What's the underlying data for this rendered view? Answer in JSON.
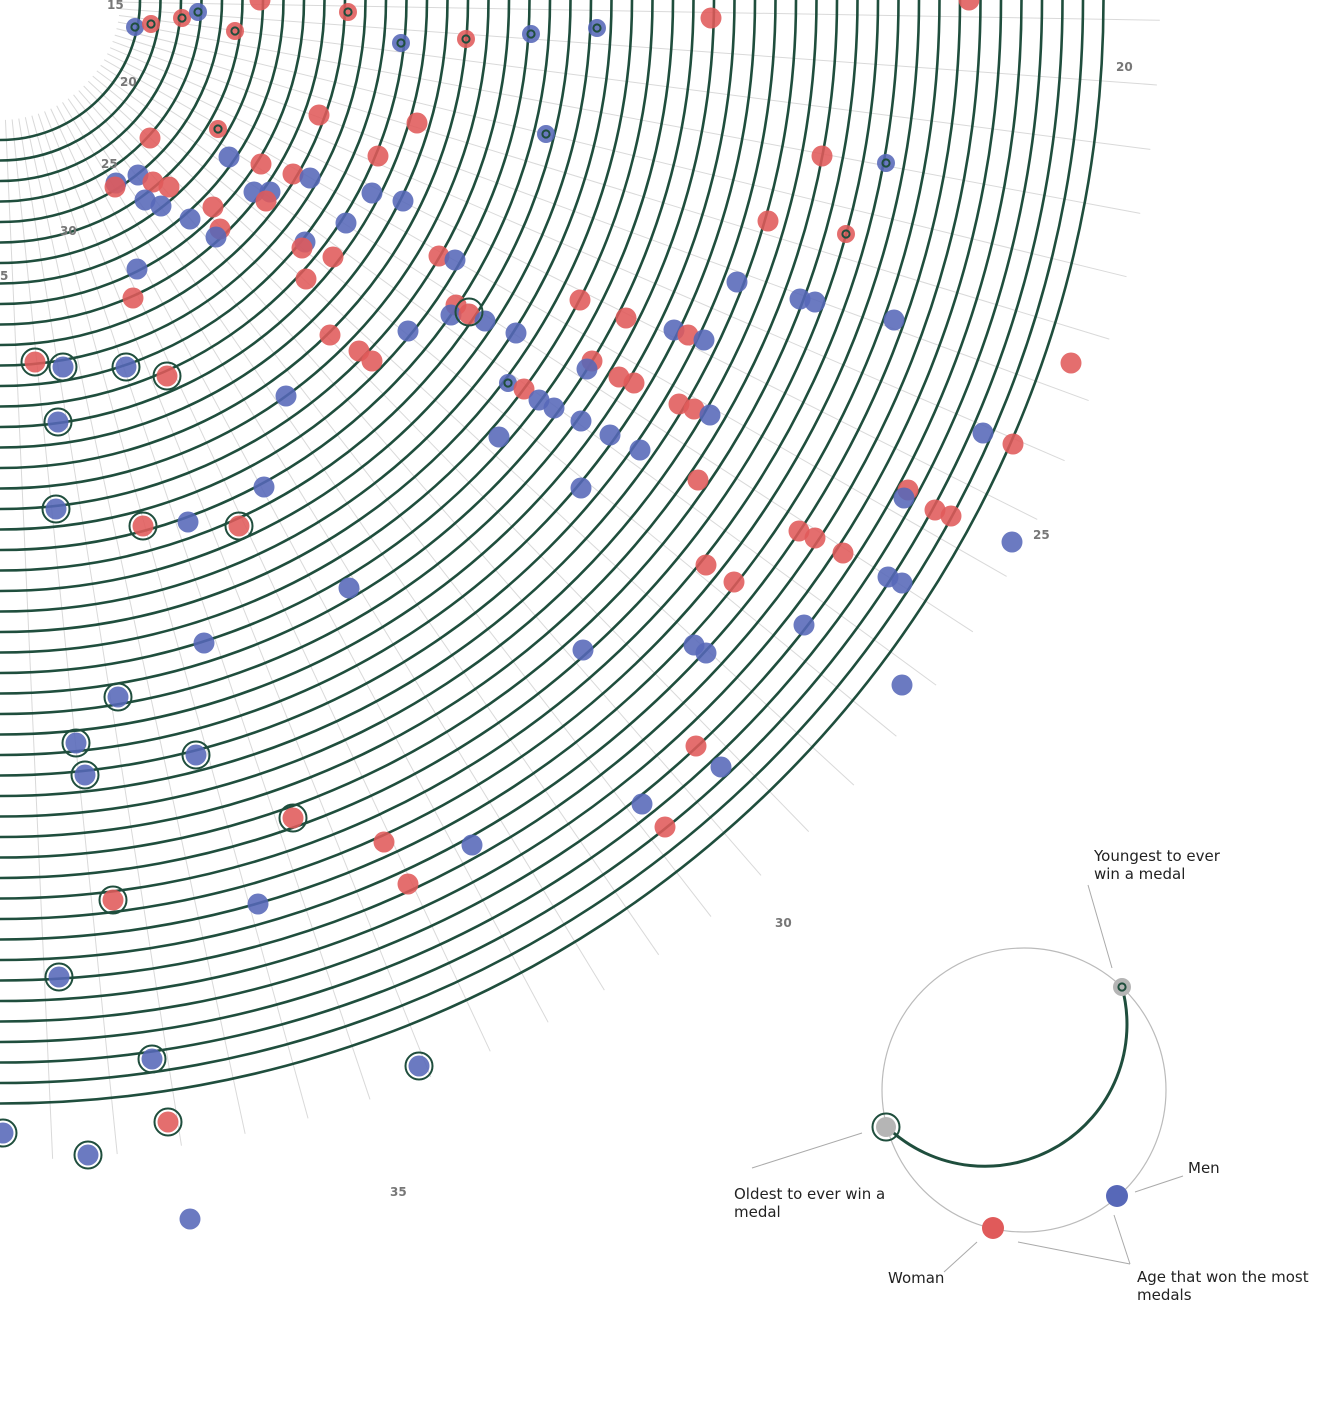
{
  "chart_data": {
    "type": "scatter",
    "title": "",
    "subtitle": "",
    "radial_axis": {
      "ticks": [
        {
          "label": "15"
        },
        {
          "label": "20"
        },
        {
          "label": "25"
        },
        {
          "label": "30"
        },
        {
          "label": "5"
        },
        {
          "label": "20"
        },
        {
          "label": "25"
        },
        {
          "label": "30"
        },
        {
          "label": "35"
        }
      ]
    },
    "colors": {
      "ring": "#1f4e3d",
      "gridline": "#d9d9d9",
      "men": "#5768b8",
      "woman": "#e05a5a",
      "neutral": "#b5b5b5"
    },
    "series": [
      {
        "name": "Men",
        "marker": "blue"
      },
      {
        "name": "Woman",
        "marker": "red"
      }
    ],
    "points": [
      {
        "cx": 135,
        "cy": 27,
        "c": "b",
        "m": "dot"
      },
      {
        "cx": 151,
        "cy": 24,
        "c": "r",
        "m": "dot"
      },
      {
        "cx": 182,
        "cy": 18,
        "c": "r",
        "m": "dot"
      },
      {
        "cx": 198,
        "cy": 12,
        "c": "b",
        "m": "dot"
      },
      {
        "cx": 235,
        "cy": 31,
        "c": "r",
        "m": "dot"
      },
      {
        "cx": 348,
        "cy": 12,
        "c": "r",
        "m": "dot"
      },
      {
        "cx": 401,
        "cy": 43,
        "c": "b",
        "m": "dot"
      },
      {
        "cx": 466,
        "cy": 39,
        "c": "r",
        "m": "dot"
      },
      {
        "cx": 531,
        "cy": 34,
        "c": "b",
        "m": "dot"
      },
      {
        "cx": 597,
        "cy": 28,
        "c": "b",
        "m": "dot"
      },
      {
        "cx": 218,
        "cy": 129,
        "c": "r",
        "m": "dot"
      },
      {
        "cx": 546,
        "cy": 134,
        "c": "b",
        "m": "dot"
      },
      {
        "cx": 886,
        "cy": 163,
        "c": "b",
        "m": "dot"
      },
      {
        "cx": 846,
        "cy": 234,
        "c": "r",
        "m": "dot"
      },
      {
        "cx": 508,
        "cy": 383,
        "c": "b",
        "m": "dot"
      },
      {
        "cx": 969,
        "cy": 0,
        "c": "r"
      },
      {
        "cx": 260,
        "cy": 0,
        "c": "r"
      },
      {
        "cx": 711,
        "cy": 18,
        "c": "r"
      },
      {
        "cx": 150,
        "cy": 138,
        "c": "r"
      },
      {
        "cx": 319,
        "cy": 115,
        "c": "r"
      },
      {
        "cx": 417,
        "cy": 123,
        "c": "r"
      },
      {
        "cx": 229,
        "cy": 157,
        "c": "b"
      },
      {
        "cx": 261,
        "cy": 164,
        "c": "r"
      },
      {
        "cx": 378,
        "cy": 156,
        "c": "r"
      },
      {
        "cx": 822,
        "cy": 156,
        "c": "r"
      },
      {
        "cx": 138,
        "cy": 175,
        "c": "b"
      },
      {
        "cx": 116,
        "cy": 183,
        "c": "b"
      },
      {
        "cx": 115,
        "cy": 187,
        "c": "r"
      },
      {
        "cx": 153,
        "cy": 182,
        "c": "r"
      },
      {
        "cx": 169,
        "cy": 187,
        "c": "r"
      },
      {
        "cx": 145,
        "cy": 200,
        "c": "b"
      },
      {
        "cx": 161,
        "cy": 206,
        "c": "b"
      },
      {
        "cx": 190,
        "cy": 219,
        "c": "b"
      },
      {
        "cx": 213,
        "cy": 207,
        "c": "r"
      },
      {
        "cx": 220,
        "cy": 229,
        "c": "r"
      },
      {
        "cx": 216,
        "cy": 237,
        "c": "b"
      },
      {
        "cx": 254,
        "cy": 192,
        "c": "b"
      },
      {
        "cx": 270,
        "cy": 192,
        "c": "b"
      },
      {
        "cx": 266,
        "cy": 201,
        "c": "r"
      },
      {
        "cx": 293,
        "cy": 174,
        "c": "r"
      },
      {
        "cx": 310,
        "cy": 178,
        "c": "b"
      },
      {
        "cx": 372,
        "cy": 193,
        "c": "b"
      },
      {
        "cx": 403,
        "cy": 201,
        "c": "b"
      },
      {
        "cx": 346,
        "cy": 223,
        "c": "b"
      },
      {
        "cx": 305,
        "cy": 242,
        "c": "b"
      },
      {
        "cx": 302,
        "cy": 248,
        "c": "r"
      },
      {
        "cx": 333,
        "cy": 257,
        "c": "r"
      },
      {
        "cx": 306,
        "cy": 279,
        "c": "r"
      },
      {
        "cx": 137,
        "cy": 269,
        "c": "b"
      },
      {
        "cx": 133,
        "cy": 298,
        "c": "r"
      },
      {
        "cx": 768,
        "cy": 221,
        "c": "r"
      },
      {
        "cx": 439,
        "cy": 256,
        "c": "r"
      },
      {
        "cx": 455,
        "cy": 260,
        "c": "b"
      },
      {
        "cx": 737,
        "cy": 282,
        "c": "b"
      },
      {
        "cx": 580,
        "cy": 300,
        "c": "r"
      },
      {
        "cx": 456,
        "cy": 305,
        "c": "r"
      },
      {
        "cx": 451,
        "cy": 315,
        "c": "b"
      },
      {
        "cx": 469,
        "cy": 314,
        "c": "r"
      },
      {
        "cx": 485,
        "cy": 321,
        "c": "b"
      },
      {
        "cx": 516,
        "cy": 333,
        "c": "b"
      },
      {
        "cx": 408,
        "cy": 331,
        "c": "b"
      },
      {
        "cx": 330,
        "cy": 335,
        "c": "r"
      },
      {
        "cx": 359,
        "cy": 351,
        "c": "r"
      },
      {
        "cx": 372,
        "cy": 361,
        "c": "r"
      },
      {
        "cx": 626,
        "cy": 318,
        "c": "r"
      },
      {
        "cx": 800,
        "cy": 299,
        "c": "b"
      },
      {
        "cx": 815,
        "cy": 302,
        "c": "b"
      },
      {
        "cx": 894,
        "cy": 320,
        "c": "b"
      },
      {
        "cx": 674,
        "cy": 330,
        "c": "b"
      },
      {
        "cx": 688,
        "cy": 335,
        "c": "r"
      },
      {
        "cx": 704,
        "cy": 340,
        "c": "b"
      },
      {
        "cx": 592,
        "cy": 361,
        "c": "r"
      },
      {
        "cx": 587,
        "cy": 369,
        "c": "b"
      },
      {
        "cx": 619,
        "cy": 377,
        "c": "r"
      },
      {
        "cx": 634,
        "cy": 383,
        "c": "r"
      },
      {
        "cx": 524,
        "cy": 389,
        "c": "r"
      },
      {
        "cx": 539,
        "cy": 400,
        "c": "b"
      },
      {
        "cx": 554,
        "cy": 408,
        "c": "b"
      },
      {
        "cx": 581,
        "cy": 421,
        "c": "b"
      },
      {
        "cx": 610,
        "cy": 435,
        "c": "b"
      },
      {
        "cx": 640,
        "cy": 450,
        "c": "b"
      },
      {
        "cx": 499,
        "cy": 437,
        "c": "b"
      },
      {
        "cx": 679,
        "cy": 404,
        "c": "r"
      },
      {
        "cx": 694,
        "cy": 409,
        "c": "r"
      },
      {
        "cx": 710,
        "cy": 415,
        "c": "b"
      },
      {
        "cx": 286,
        "cy": 396,
        "c": "b"
      },
      {
        "cx": 1071,
        "cy": 363,
        "c": "r"
      },
      {
        "cx": 983,
        "cy": 433,
        "c": "b"
      },
      {
        "cx": 1013,
        "cy": 444,
        "c": "r"
      },
      {
        "cx": 698,
        "cy": 480,
        "c": "r"
      },
      {
        "cx": 581,
        "cy": 488,
        "c": "b"
      },
      {
        "cx": 264,
        "cy": 487,
        "c": "b"
      },
      {
        "cx": 908,
        "cy": 490,
        "c": "r"
      },
      {
        "cx": 904,
        "cy": 498,
        "c": "b"
      },
      {
        "cx": 935,
        "cy": 510,
        "c": "r"
      },
      {
        "cx": 951,
        "cy": 516,
        "c": "r"
      },
      {
        "cx": 188,
        "cy": 522,
        "c": "b"
      },
      {
        "cx": 799,
        "cy": 531,
        "c": "r"
      },
      {
        "cx": 815,
        "cy": 538,
        "c": "r"
      },
      {
        "cx": 843,
        "cy": 553,
        "c": "r"
      },
      {
        "cx": 1012,
        "cy": 542,
        "c": "b"
      },
      {
        "cx": 706,
        "cy": 565,
        "c": "r"
      },
      {
        "cx": 734,
        "cy": 582,
        "c": "r"
      },
      {
        "cx": 888,
        "cy": 577,
        "c": "b"
      },
      {
        "cx": 902,
        "cy": 583,
        "c": "b"
      },
      {
        "cx": 349,
        "cy": 588,
        "c": "b"
      },
      {
        "cx": 804,
        "cy": 625,
        "c": "b"
      },
      {
        "cx": 204,
        "cy": 643,
        "c": "b"
      },
      {
        "cx": 694,
        "cy": 645,
        "c": "b"
      },
      {
        "cx": 706,
        "cy": 653,
        "c": "b"
      },
      {
        "cx": 583,
        "cy": 650,
        "c": "b"
      },
      {
        "cx": 902,
        "cy": 685,
        "c": "b"
      },
      {
        "cx": 696,
        "cy": 746,
        "c": "r"
      },
      {
        "cx": 721,
        "cy": 767,
        "c": "b"
      },
      {
        "cx": 642,
        "cy": 804,
        "c": "b"
      },
      {
        "cx": 665,
        "cy": 827,
        "c": "r"
      },
      {
        "cx": 384,
        "cy": 842,
        "c": "r"
      },
      {
        "cx": 472,
        "cy": 845,
        "c": "b"
      },
      {
        "cx": 408,
        "cy": 884,
        "c": "r"
      },
      {
        "cx": 258,
        "cy": 904,
        "c": "b"
      },
      {
        "cx": 190,
        "cy": 1219,
        "c": "b"
      },
      {
        "cx": 35,
        "cy": 362,
        "c": "r",
        "m": "ring"
      },
      {
        "cx": 63,
        "cy": 367,
        "c": "b",
        "m": "ring"
      },
      {
        "cx": 126,
        "cy": 367,
        "c": "b",
        "m": "ring"
      },
      {
        "cx": 167,
        "cy": 376,
        "c": "r",
        "m": "ring"
      },
      {
        "cx": 58,
        "cy": 422,
        "c": "b",
        "m": "ring"
      },
      {
        "cx": 56,
        "cy": 509,
        "c": "b",
        "m": "ring"
      },
      {
        "cx": 143,
        "cy": 526,
        "c": "r",
        "m": "ring"
      },
      {
        "cx": 239,
        "cy": 526,
        "c": "r",
        "m": "ring"
      },
      {
        "cx": 118,
        "cy": 697,
        "c": "b",
        "m": "ring"
      },
      {
        "cx": 76,
        "cy": 743,
        "c": "b",
        "m": "ring"
      },
      {
        "cx": 85,
        "cy": 775,
        "c": "b",
        "m": "ring"
      },
      {
        "cx": 196,
        "cy": 755,
        "c": "b",
        "m": "ring"
      },
      {
        "cx": 293,
        "cy": 818,
        "c": "r",
        "m": "ring"
      },
      {
        "cx": 113,
        "cy": 900,
        "c": "r",
        "m": "ring"
      },
      {
        "cx": 59,
        "cy": 977,
        "c": "b",
        "m": "ring"
      },
      {
        "cx": 152,
        "cy": 1059,
        "c": "b",
        "m": "ring"
      },
      {
        "cx": 419,
        "cy": 1066,
        "c": "b",
        "m": "ring"
      },
      {
        "cx": 168,
        "cy": 1122,
        "c": "r",
        "m": "ring"
      },
      {
        "cx": 3,
        "cy": 1133,
        "c": "b",
        "m": "ring"
      },
      {
        "cx": 88,
        "cy": 1155,
        "c": "b",
        "m": "ring"
      },
      {
        "cx": 469,
        "cy": 312,
        "c": "none",
        "m": "ring"
      }
    ],
    "legend": {
      "placement": "bottom-right",
      "youngest_label": "Youngest to ever win a medal",
      "youngest_line1": "Youngest to ever",
      "youngest_line2": "win a medal",
      "oldest_line1": "Oldest to ever win a",
      "oldest_line2": "medal",
      "men_label": "Men",
      "woman_label": "Woman",
      "most_line1": "Age that won the most",
      "most_line2": "medals"
    }
  }
}
